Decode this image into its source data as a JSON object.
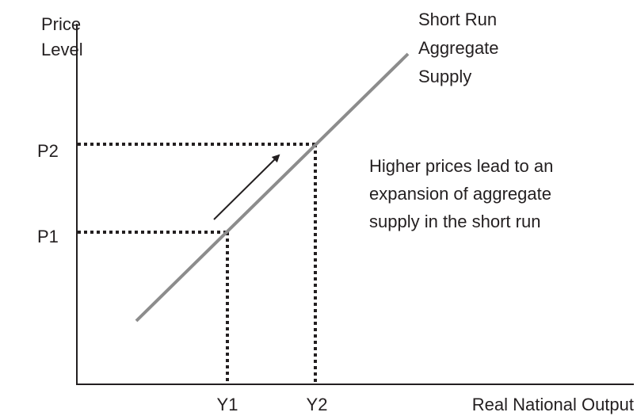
{
  "diagram": {
    "y_axis_label": [
      "Price",
      "Level"
    ],
    "x_axis_label": "Real National Output",
    "curve_label": [
      "Short Run",
      "Aggregate",
      "Supply"
    ],
    "price_labels": [
      "P2",
      "P1"
    ],
    "output_labels": [
      "Y1",
      "Y2"
    ],
    "annotation": [
      "Higher prices lead to an",
      "expansion of aggregate",
      "supply in the short run"
    ]
  }
}
